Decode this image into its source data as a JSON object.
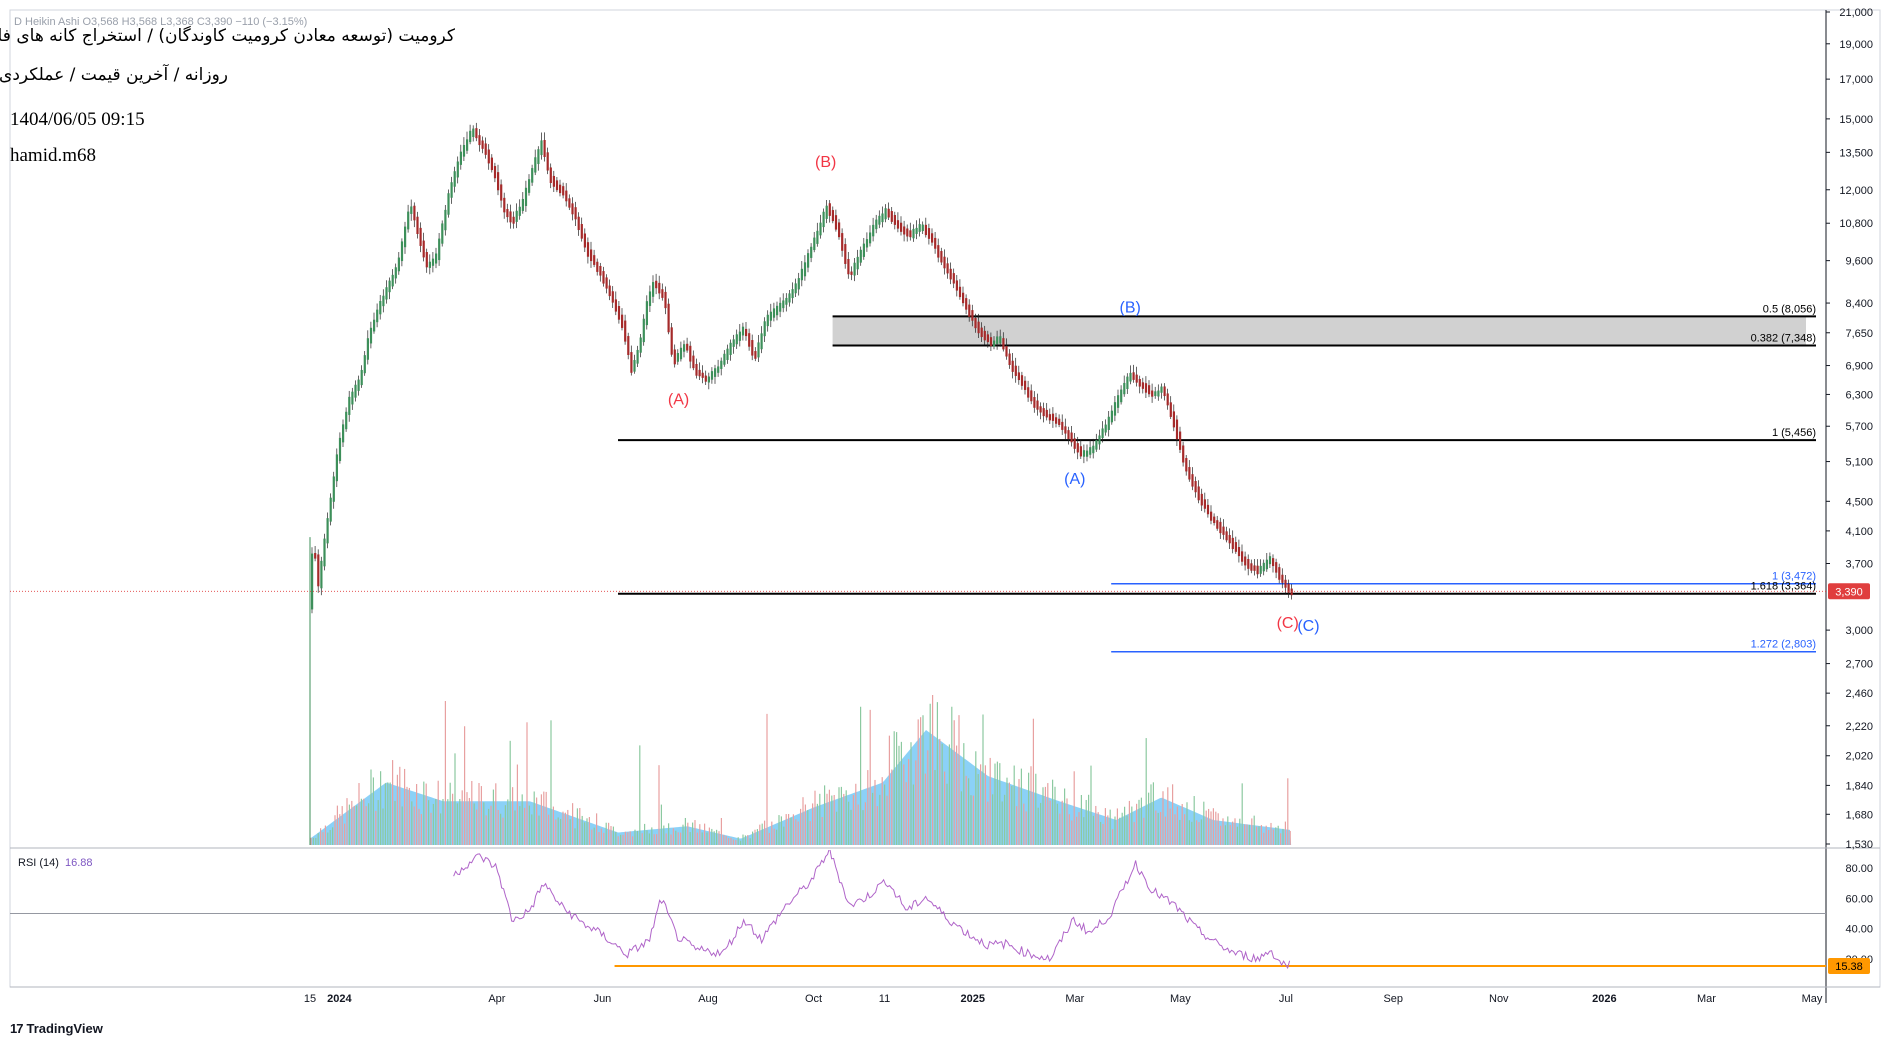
{
  "header": {
    "ohlc_line": "D  Heikin Ashi  O3,568  H3,568  L3,368  C3,390  −110 (−3.15%)",
    "symbol_title": "کرومیت (توسعه معادن کرومیت کاوندگان) / استخراج کانه های فلزی",
    "timeframe_line": "روزانه / آخرین قیمت / عملکردی",
    "datetime": "1404/06/05 09:15",
    "author": "hamid.m68"
  },
  "footer": {
    "brand": "TradingView",
    "logo": "tradingview-logo"
  },
  "colors": {
    "up": "#26a69a",
    "up_candle": "#3d8f5a",
    "down_candle": "#a52a2a",
    "volume_up": "#8cc9a0",
    "volume_down": "#e8a0a0",
    "volume_ma": "#6ec6f5",
    "rsi": "#b065c9",
    "fib_black": "#000000",
    "fib_blue": "#2962ff",
    "rsi_level": "#ff9800",
    "wave_red": "#f23645",
    "wave_blue": "#2962ff",
    "price_badge": "#e03e3e"
  },
  "chart_data": {
    "type": "candlestick",
    "chart_style": "Heikin Ashi",
    "interval": "Daily",
    "y_scale": "log",
    "price_axis_ticks": [
      "21,000",
      "19,000",
      "17,000",
      "15,000",
      "13,500",
      "12,000",
      "10,800",
      "9,600",
      "8,400",
      "7,650",
      "6,900",
      "6,300",
      "5,700",
      "5,100",
      "4,500",
      "4,100",
      "3,700",
      "3,390",
      "3,000",
      "2,700",
      "2,460",
      "2,220",
      "2,020",
      "1,840",
      "1,680",
      "1,530"
    ],
    "time_axis_ticks": [
      "15",
      "2024",
      "Apr",
      "Jun",
      "Aug",
      "Oct",
      "11",
      "2025",
      "Mar",
      "May",
      "Jul",
      "Sep",
      "Nov",
      "2026",
      "Mar",
      "May"
    ],
    "time_axis_span": [
      "2023-12-15",
      "2026-05-01"
    ],
    "ylim": [
      1530,
      21000
    ],
    "last_price": "3,390",
    "price_path": [
      [
        "2023-12-15",
        3050
      ],
      [
        "2023-12-18",
        4020
      ],
      [
        "2023-12-21",
        3450
      ],
      [
        "2023-12-26",
        4200
      ],
      [
        "2024-01-02",
        5400
      ],
      [
        "2024-01-08",
        6200
      ],
      [
        "2024-01-14",
        6600
      ],
      [
        "2024-01-20",
        7700
      ],
      [
        "2024-01-27",
        8500
      ],
      [
        "2024-02-05",
        9500
      ],
      [
        "2024-02-12",
        11500
      ],
      [
        "2024-02-17",
        10400
      ],
      [
        "2024-02-22",
        9400
      ],
      [
        "2024-02-27",
        9700
      ],
      [
        "2024-03-05",
        11700
      ],
      [
        "2024-03-12",
        13400
      ],
      [
        "2024-03-19",
        14500
      ],
      [
        "2024-03-26",
        13600
      ],
      [
        "2024-04-01",
        12600
      ],
      [
        "2024-04-06",
        11300
      ],
      [
        "2024-04-11",
        10800
      ],
      [
        "2024-04-17",
        11500
      ],
      [
        "2024-04-24",
        13100
      ],
      [
        "2024-04-28",
        13900
      ],
      [
        "2024-05-03",
        12400
      ],
      [
        "2024-05-10",
        11900
      ],
      [
        "2024-05-17",
        11100
      ],
      [
        "2024-05-24",
        9900
      ],
      [
        "2024-05-31",
        9300
      ],
      [
        "2024-06-07",
        8600
      ],
      [
        "2024-06-14",
        7800
      ],
      [
        "2024-06-19",
        6800
      ],
      [
        "2024-06-24",
        7400
      ],
      [
        "2024-06-28",
        8400
      ],
      [
        "2024-07-02",
        9000
      ],
      [
        "2024-07-08",
        8500
      ],
      [
        "2024-07-13",
        6950
      ],
      [
        "2024-07-20",
        7400
      ],
      [
        "2024-07-26",
        6750
      ],
      [
        "2024-08-02",
        6600
      ],
      [
        "2024-08-09",
        6900
      ],
      [
        "2024-08-16",
        7400
      ],
      [
        "2024-08-23",
        7750
      ],
      [
        "2024-08-29",
        7050
      ],
      [
        "2024-09-05",
        8000
      ],
      [
        "2024-09-12",
        8300
      ],
      [
        "2024-09-19",
        8600
      ],
      [
        "2024-09-26",
        9300
      ],
      [
        "2024-10-03",
        10300
      ],
      [
        "2024-10-10",
        11400
      ],
      [
        "2024-10-16",
        10600
      ],
      [
        "2024-10-23",
        9100
      ],
      [
        "2024-10-30",
        9900
      ],
      [
        "2024-11-06",
        10700
      ],
      [
        "2024-11-13",
        11200
      ],
      [
        "2024-11-20",
        10700
      ],
      [
        "2024-11-27",
        10400
      ],
      [
        "2024-12-04",
        10700
      ],
      [
        "2024-12-09",
        10300
      ],
      [
        "2024-12-16",
        9500
      ],
      [
        "2024-12-23",
        8900
      ],
      [
        "2024-12-30",
        8200
      ],
      [
        "2025-01-06",
        7700
      ],
      [
        "2025-01-12",
        7400
      ],
      [
        "2025-01-18",
        7500
      ],
      [
        "2025-01-24",
        6900
      ],
      [
        "2025-01-31",
        6500
      ],
      [
        "2025-02-07",
        6100
      ],
      [
        "2025-02-13",
        5900
      ],
      [
        "2025-02-20",
        5800
      ],
      [
        "2025-02-27",
        5500
      ],
      [
        "2025-03-06",
        5200
      ],
      [
        "2025-03-12",
        5300
      ],
      [
        "2025-03-20",
        5700
      ],
      [
        "2025-03-27",
        6200
      ],
      [
        "2025-04-03",
        6700
      ],
      [
        "2025-04-09",
        6500
      ],
      [
        "2025-04-16",
        6300
      ],
      [
        "2025-04-22",
        6400
      ],
      [
        "2025-04-28",
        5800
      ],
      [
        "2025-05-05",
        5000
      ],
      [
        "2025-05-12",
        4600
      ],
      [
        "2025-05-19",
        4300
      ],
      [
        "2025-05-26",
        4100
      ],
      [
        "2025-06-02",
        3900
      ],
      [
        "2025-06-09",
        3700
      ],
      [
        "2025-06-16",
        3600
      ],
      [
        "2025-06-23",
        3750
      ],
      [
        "2025-06-30",
        3500
      ],
      [
        "2025-07-04",
        3390
      ]
    ],
    "fibonacci_levels": [
      {
        "label": "0.5 (8,056)",
        "price": 8056,
        "color": "black",
        "from": "2024-10-12",
        "to": "2026-05-01"
      },
      {
        "label": "0.382 (7,348)",
        "price": 7348,
        "color": "black",
        "from": "2024-10-12",
        "to": "2026-05-01"
      },
      {
        "label": "1 (5,456)",
        "price": 5456,
        "color": "black",
        "from": "2024-06-10",
        "to": "2026-05-01"
      },
      {
        "label": "1 (3,472)",
        "price": 3472,
        "color": "blue",
        "from": "2025-03-22",
        "to": "2026-05-01"
      },
      {
        "label": "1.618 (3,364)",
        "price": 3364,
        "color": "black",
        "from": "2024-06-10",
        "to": "2026-05-01"
      },
      {
        "label": "1.272 (2,803)",
        "price": 2803,
        "color": "blue",
        "from": "2025-03-22",
        "to": "2026-05-01"
      }
    ],
    "zone": {
      "from_price": 7348,
      "to_price": 8056,
      "from": "2024-10-12",
      "to": "2026-05-01"
    },
    "wave_labels": [
      {
        "text": "(B)",
        "color": "red",
        "date": "2024-10-08",
        "price": 12900
      },
      {
        "text": "(A)",
        "color": "red",
        "date": "2024-07-15",
        "price": 6100
      },
      {
        "text": "(B)",
        "color": "blue",
        "date": "2025-04-02",
        "price": 8150
      },
      {
        "text": "(A)",
        "color": "blue",
        "date": "2025-03-01",
        "price": 4750
      },
      {
        "text": "(C)",
        "color": "red",
        "date": "2025-07-02",
        "price": 3020
      },
      {
        "text": "(C)",
        "color": "blue",
        "date": "2025-07-14",
        "price": 2990
      }
    ],
    "volume": {
      "note": "relative volume bars with moving-average area",
      "ma_profile": [
        [
          "2023-12-15",
          0.05
        ],
        [
          "2024-01-28",
          0.5
        ],
        [
          "2024-03-01",
          0.35
        ],
        [
          "2024-04-20",
          0.35
        ],
        [
          "2024-06-10",
          0.1
        ],
        [
          "2024-07-20",
          0.15
        ],
        [
          "2024-08-20",
          0.05
        ],
        [
          "2024-10-01",
          0.3
        ],
        [
          "2024-11-10",
          0.5
        ],
        [
          "2024-12-05",
          0.92
        ],
        [
          "2025-01-10",
          0.55
        ],
        [
          "2025-02-20",
          0.35
        ],
        [
          "2025-03-25",
          0.2
        ],
        [
          "2025-04-20",
          0.38
        ],
        [
          "2025-05-20",
          0.2
        ],
        [
          "2025-07-04",
          0.12
        ]
      ]
    },
    "rsi": {
      "label": "RSI (14)",
      "value": "16.88",
      "level_label": "15.38",
      "level": 15.38,
      "axis_ticks": [
        "80.00",
        "60.00",
        "40.00",
        "20.00"
      ],
      "ylim": [
        0,
        100
      ],
      "path": [
        [
          "2024-03-07",
          75
        ],
        [
          "2024-03-14",
          82
        ],
        [
          "2024-03-22",
          88
        ],
        [
          "2024-04-01",
          80
        ],
        [
          "2024-04-10",
          45
        ],
        [
          "2024-04-20",
          52
        ],
        [
          "2024-04-28",
          70
        ],
        [
          "2024-05-08",
          55
        ],
        [
          "2024-05-20",
          44
        ],
        [
          "2024-06-01",
          36
        ],
        [
          "2024-06-15",
          23
        ],
        [
          "2024-06-28",
          32
        ],
        [
          "2024-07-05",
          60
        ],
        [
          "2024-07-14",
          35
        ],
        [
          "2024-07-25",
          26
        ],
        [
          "2024-08-10",
          24
        ],
        [
          "2024-08-22",
          46
        ],
        [
          "2024-09-01",
          33
        ],
        [
          "2024-09-15",
          55
        ],
        [
          "2024-09-30",
          72
        ],
        [
          "2024-10-10",
          92
        ],
        [
          "2024-10-22",
          55
        ],
        [
          "2024-11-01",
          61
        ],
        [
          "2024-11-12",
          72
        ],
        [
          "2024-11-24",
          52
        ],
        [
          "2024-12-05",
          61
        ],
        [
          "2024-12-16",
          48
        ],
        [
          "2024-12-30",
          36
        ],
        [
          "2025-01-10",
          29
        ],
        [
          "2025-01-20",
          30
        ],
        [
          "2025-02-01",
          24
        ],
        [
          "2025-02-15",
          20
        ],
        [
          "2025-02-28",
          46
        ],
        [
          "2025-03-10",
          37
        ],
        [
          "2025-03-22",
          50
        ],
        [
          "2025-04-05",
          83
        ],
        [
          "2025-04-15",
          65
        ],
        [
          "2025-04-28",
          55
        ],
        [
          "2025-05-10",
          40
        ],
        [
          "2025-05-22",
          30
        ],
        [
          "2025-06-01",
          24
        ],
        [
          "2025-06-15",
          20
        ],
        [
          "2025-06-22",
          26
        ],
        [
          "2025-06-28",
          17
        ],
        [
          "2025-07-04",
          17
        ]
      ]
    }
  }
}
